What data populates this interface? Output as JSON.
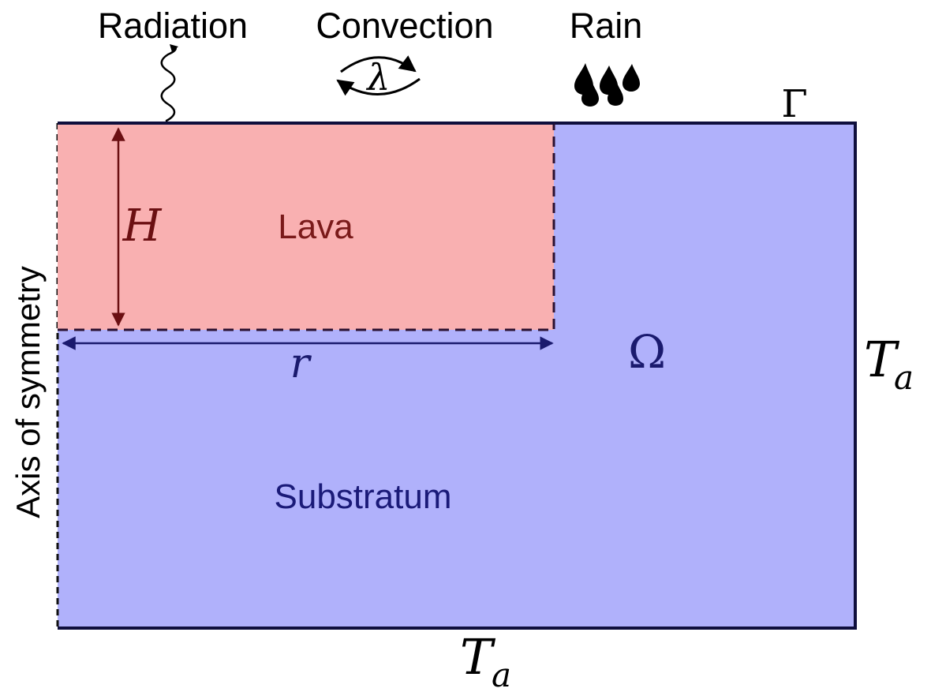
{
  "header_labels": {
    "radiation": "Radiation",
    "convection": "Convection",
    "rain": "Rain"
  },
  "convection_symbol": "λ",
  "boundary_symbol": "Γ",
  "domain_symbol": "Ω",
  "regions": {
    "lava": "Lava",
    "substratum": "Substratum"
  },
  "dimensions": {
    "height": "H",
    "radius": "r"
  },
  "temperature": {
    "right": {
      "main": "T",
      "sub": "a"
    },
    "bottom": {
      "main": "T",
      "sub": "a"
    }
  },
  "axis_label": "Axis of symmetry",
  "colors": {
    "lava_fill": "#f9b0b1",
    "lava_text": "#7a1a1a",
    "lava_arrow": "#6b0f12",
    "substratum_fill": "#b0b1fb",
    "substratum_text": "#1a1a78",
    "domain_border": "#0f0f3d",
    "lava_border": "#2a1030",
    "radius_arrow": "#1a1a6e",
    "text": "#000000"
  }
}
